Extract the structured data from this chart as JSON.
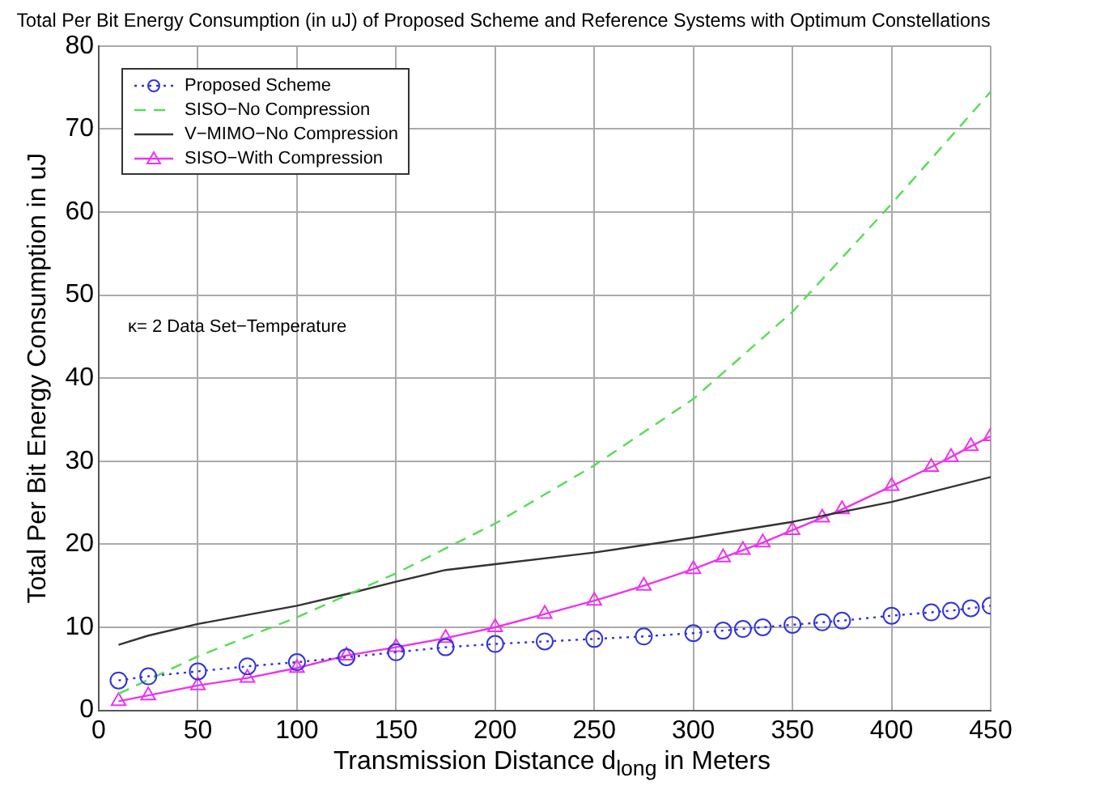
{
  "chart_data": {
    "type": "line",
    "title": "Total Per Bit Energy Consumption (in uJ) of Proposed Scheme and Reference Systems with Optimum Constellations",
    "xlabel": "Transmission Distance d$_{long}$ in Meters",
    "ylabel": "Total Per Bit Energy Consumption in uJ",
    "xlim": [
      0,
      450
    ],
    "xticks": [
      0,
      50,
      100,
      150,
      200,
      250,
      300,
      350,
      400,
      450
    ],
    "ylim": [
      0,
      80
    ],
    "yticks": [
      0,
      10,
      20,
      30,
      40,
      50,
      60,
      70,
      80
    ],
    "grid": true,
    "legend": "top left",
    "annotations": [
      "κ= 2 Data Set−Temperature"
    ],
    "series": [
      {
        "name": "Proposed Scheme",
        "color": "#3333dd",
        "marker": "circle",
        "line_style": "dotted",
        "x": [
          10,
          25,
          50,
          75,
          100,
          125,
          150,
          175,
          200,
          225,
          250,
          275,
          300,
          315,
          325,
          335,
          350,
          365,
          375,
          400,
          420,
          430,
          440,
          450
        ],
        "values": [
          3.6,
          4.1,
          4.7,
          5.3,
          5.8,
          6.4,
          7.0,
          7.6,
          8.0,
          8.3,
          8.6,
          8.9,
          9.3,
          9.6,
          9.8,
          10.0,
          10.3,
          10.6,
          10.8,
          11.4,
          11.8,
          12.0,
          12.3,
          12.6
        ]
      },
      {
        "name": "SISO−No Compression",
        "color": "#55dd55",
        "marker": "none",
        "line_style": "dashed",
        "x": [
          10,
          50,
          100,
          150,
          200,
          250,
          300,
          350,
          400,
          450
        ],
        "values": [
          2.0,
          6.5,
          11.2,
          16.5,
          22.5,
          29.5,
          37.5,
          48,
          61,
          74.5
        ]
      },
      {
        "name": "V−MIMO−No Compression",
        "color": "#333333",
        "marker": "none",
        "line_style": "solid",
        "x": [
          10,
          25,
          50,
          75,
          100,
          125,
          150,
          175,
          200,
          250,
          300,
          350,
          400,
          450
        ],
        "values": [
          7.9,
          9.0,
          10.4,
          11.5,
          12.6,
          14.0,
          15.5,
          16.9,
          17.6,
          19.0,
          20.8,
          22.7,
          25.1,
          28.1
        ]
      },
      {
        "name": "SISO−With Compression",
        "color": "#ee33ee",
        "marker": "triangle",
        "line_style": "solid",
        "x": [
          10,
          25,
          50,
          75,
          100,
          125,
          150,
          175,
          200,
          225,
          250,
          275,
          300,
          315,
          325,
          335,
          350,
          365,
          375,
          400,
          420,
          430,
          440,
          450
        ],
        "values": [
          1.1,
          1.8,
          3.0,
          3.9,
          5.1,
          6.6,
          7.6,
          8.7,
          10.0,
          11.6,
          13.2,
          15.0,
          17.0,
          18.4,
          19.3,
          20.2,
          21.7,
          23.2,
          24.2,
          27.0,
          29.3,
          30.5,
          31.8,
          33.0
        ]
      }
    ]
  }
}
